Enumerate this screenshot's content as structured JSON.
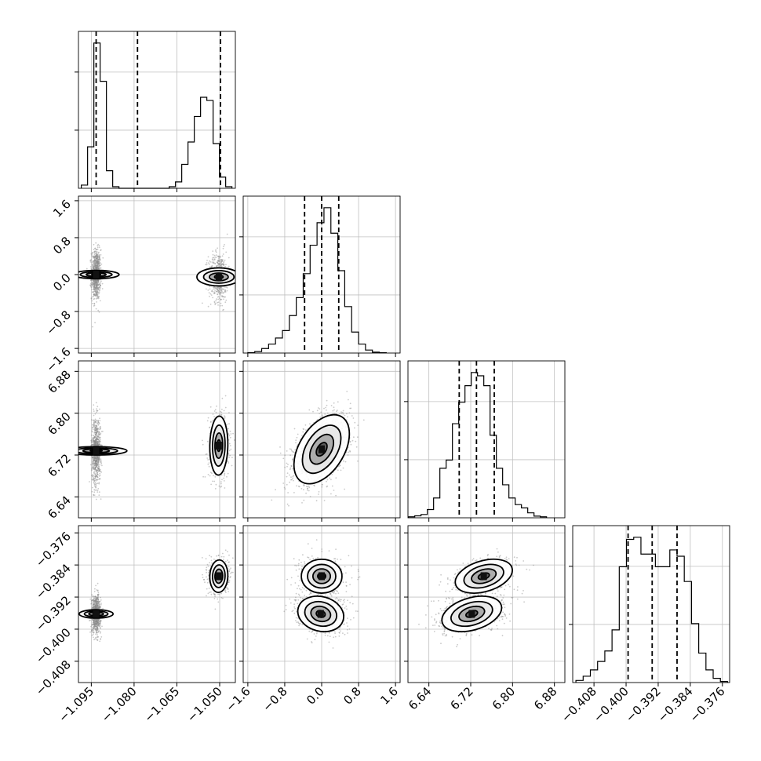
{
  "chart_data": {
    "type": "corner",
    "parameters": [
      {
        "ticks": [
          -1.095,
          -1.08,
          -1.065,
          -1.05
        ],
        "tick_labels": [
          "−1.095",
          "−1.080",
          "−1.065",
          "−1.050"
        ],
        "range": [
          -1.0995,
          -1.0445
        ],
        "quantiles": [
          -1.0933,
          -1.0788,
          -1.0497
        ],
        "hist": {
          "edges": [
            -1.0985,
            -1.0963,
            -1.0941,
            -1.0919,
            -1.0897,
            -1.0875,
            -1.0853,
            -1.0831,
            -1.0809,
            -1.0787,
            -1.0765,
            -1.0743,
            -1.0721,
            -1.0699,
            -1.0677,
            -1.0655,
            -1.0633,
            -1.0611,
            -1.0589,
            -1.0567,
            -1.0545,
            -1.0523,
            -1.0501,
            -1.0479,
            -1.0457
          ],
          "counts": [
            0.02,
            0.26,
            0.91,
            0.67,
            0.11,
            0.01,
            0,
            0,
            0,
            0,
            0,
            0,
            0,
            0,
            0.01,
            0.04,
            0.15,
            0.29,
            0.45,
            0.57,
            0.55,
            0.28,
            0.07,
            0.01
          ]
        }
      },
      {
        "ticks": [
          -1.6,
          -0.8,
          0.0,
          0.8,
          1.6
        ],
        "tick_labels": [
          "−1.6",
          "−0.8",
          "0.0",
          "0.8",
          "1.6"
        ],
        "range": [
          -1.7,
          1.7
        ],
        "quantiles": [
          -0.37,
          0.0,
          0.37
        ],
        "hist": {
          "edges": [
            -1.6,
            -1.45,
            -1.3,
            -1.15,
            -1.0,
            -0.85,
            -0.7,
            -0.55,
            -0.4,
            -0.25,
            -0.1,
            0.05,
            0.2,
            0.35,
            0.5,
            0.65,
            0.8,
            0.95,
            1.1,
            1.25,
            1.4
          ],
          "counts": [
            0.003,
            0.01,
            0.03,
            0.06,
            0.1,
            0.15,
            0.25,
            0.37,
            0.53,
            0.72,
            0.87,
            0.97,
            0.8,
            0.55,
            0.31,
            0.14,
            0.06,
            0.02,
            0.006,
            0.002
          ]
        }
      },
      {
        "ticks": [
          6.64,
          6.72,
          6.8,
          6.88
        ],
        "tick_labels": [
          "6.64",
          "6.72",
          "6.80",
          "6.88"
        ],
        "range": [
          6.6,
          6.9
        ],
        "quantiles": [
          6.698,
          6.731,
          6.765
        ],
        "hist": {
          "edges": [
            6.601,
            6.613,
            6.625,
            6.637,
            6.649,
            6.661,
            6.673,
            6.685,
            6.697,
            6.709,
            6.721,
            6.733,
            6.745,
            6.757,
            6.769,
            6.781,
            6.793,
            6.805,
            6.817,
            6.829,
            6.841,
            6.853,
            6.865
          ],
          "counts": [
            0.006,
            0.012,
            0.02,
            0.05,
            0.12,
            0.3,
            0.35,
            0.57,
            0.7,
            0.8,
            0.88,
            0.86,
            0.8,
            0.5,
            0.3,
            0.2,
            0.12,
            0.08,
            0.06,
            0.03,
            0.01,
            0.006
          ]
        }
      },
      {
        "ticks": [
          -0.408,
          -0.4,
          -0.392,
          -0.384,
          -0.376
        ],
        "tick_labels": [
          "−0.408",
          "−0.400",
          "−0.392",
          "−0.384",
          "−0.376"
        ],
        "range": [
          -0.4133,
          -0.3742
        ],
        "quantiles": [
          -0.3995,
          -0.3935,
          -0.3873
        ],
        "hist": {
          "edges": [
            -0.4125,
            -0.4107,
            -0.4089,
            -0.4071,
            -0.4053,
            -0.4035,
            -0.4017,
            -0.3999,
            -0.3981,
            -0.3963,
            -0.3945,
            -0.3927,
            -0.3909,
            -0.3891,
            -0.3873,
            -0.3855,
            -0.3837,
            -0.3819,
            -0.3801,
            -0.3783,
            -0.3765,
            -0.3747
          ],
          "counts": [
            0.01,
            0.03,
            0.06,
            0.1,
            0.15,
            0.25,
            0.55,
            0.68,
            0.69,
            0.61,
            0.61,
            0.55,
            0.55,
            0.63,
            0.6,
            0.48,
            0.28,
            0.14,
            0.06,
            0.02,
            0.005
          ]
        }
      }
    ],
    "pairs": [
      {
        "x": 0,
        "y": 1,
        "modes": [
          {
            "cx": -1.0933,
            "cy": 0.0,
            "sx": 0.0008,
            "sy": 0.27,
            "rho": 0.0,
            "w": 0.6
          },
          {
            "cx": -1.0503,
            "cy": -0.05,
            "sx": 0.0018,
            "sy": 0.27,
            "rho": 0.0,
            "w": 0.4
          }
        ]
      },
      {
        "x": 0,
        "y": 2,
        "modes": [
          {
            "cx": -1.0933,
            "cy": 6.728,
            "sx": 0.0008,
            "sy": 0.032,
            "rho": 0.0,
            "w": 0.6
          },
          {
            "cx": -1.0503,
            "cy": 6.738,
            "sx": 0.0018,
            "sy": 0.032,
            "rho": 0.05,
            "w": 0.4
          }
        ]
      },
      {
        "x": 1,
        "y": 2,
        "modes": [
          {
            "cx": 0.0,
            "cy": 6.731,
            "sx": 0.3,
            "sy": 0.033,
            "rho": 0.45,
            "w": 1.0
          }
        ]
      },
      {
        "x": 0,
        "y": 3,
        "modes": [
          {
            "cx": -1.0933,
            "cy": -0.3962,
            "sx": 0.0008,
            "sy": 0.0023,
            "rho": 0.0,
            "w": 0.6
          },
          {
            "cx": -1.0503,
            "cy": -0.3868,
            "sx": 0.0018,
            "sy": 0.0023,
            "rho": 0.05,
            "w": 0.4
          }
        ]
      },
      {
        "x": 1,
        "y": 3,
        "modes": [
          {
            "cx": -0.02,
            "cy": -0.3962,
            "sx": 0.27,
            "sy": 0.0024,
            "rho": -0.15,
            "w": 0.6
          },
          {
            "cx": 0.0,
            "cy": -0.3868,
            "sx": 0.25,
            "sy": 0.0024,
            "rho": 0.0,
            "w": 0.4
          }
        ]
      },
      {
        "x": 2,
        "y": 3,
        "modes": [
          {
            "cx": 6.722,
            "cy": -0.3962,
            "sx": 0.031,
            "sy": 0.0024,
            "rho": 0.35,
            "w": 0.6
          },
          {
            "cx": 6.745,
            "cy": -0.3868,
            "sx": 0.031,
            "sy": 0.0024,
            "rho": 0.35,
            "w": 0.4
          }
        ]
      }
    ],
    "contour_levels": [
      0.39,
      0.86,
      1.39,
      2.0
    ],
    "grid": true,
    "legend": "none"
  }
}
